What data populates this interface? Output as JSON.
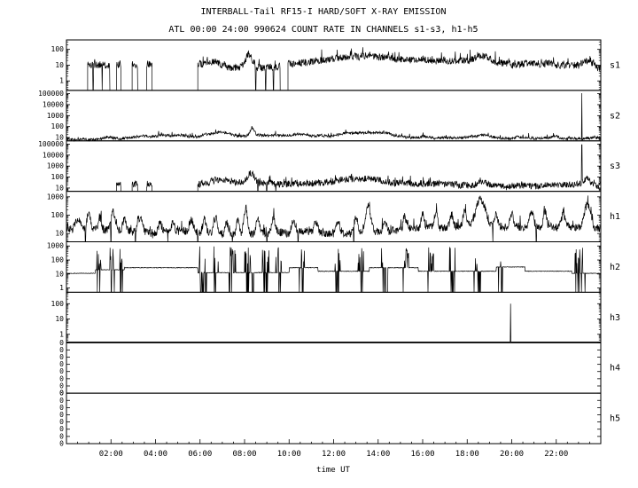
{
  "page": {
    "background": "#ffffff",
    "line_color": "#000000"
  },
  "chart_data": {
    "type": "line",
    "title": "INTERBALL-Tail RF15-I HARD/SOFT X-RAY EMISSION",
    "subtitle": "ATL 00:00 24:00 990624  COUNT RATE IN CHANNELS s1-s3, h1-h5",
    "xlabel": "time UT",
    "y_scale": "log",
    "grid": false,
    "x_range_hours": [
      0,
      24
    ],
    "x_minor_step_hours": 0.5,
    "x_ticks": [
      {
        "hour": 2,
        "label": "02:00"
      },
      {
        "hour": 4,
        "label": "04:00"
      },
      {
        "hour": 6,
        "label": "06:00"
      },
      {
        "hour": 8,
        "label": "08:00"
      },
      {
        "hour": 10,
        "label": "10:00"
      },
      {
        "hour": 12,
        "label": "12:00"
      },
      {
        "hour": 14,
        "label": "14:00"
      },
      {
        "hour": 16,
        "label": "16:00"
      },
      {
        "hour": 18,
        "label": "18:00"
      },
      {
        "hour": 20,
        "label": "20:00"
      },
      {
        "hour": 22,
        "label": "22:00"
      }
    ],
    "panels": [
      {
        "label": "s1",
        "kind": "noisy",
        "seed": 11,
        "log_range": [
          -0.6,
          2.6
        ],
        "minor": true,
        "yticks": [
          {
            "pos": 2,
            "text": "100"
          },
          {
            "pos": 1,
            "text": "10"
          },
          {
            "pos": 0,
            "text": "1"
          }
        ],
        "base": 1.05,
        "noise": 0.22,
        "ex": [
          0.05,
          0.55
        ],
        "segments": [
          [
            0.95,
            1.95
          ],
          [
            2.25,
            2.45
          ],
          [
            2.95,
            3.2
          ],
          [
            3.6,
            3.85
          ],
          [
            5.9,
            9.6
          ],
          [
            9.95,
            24
          ]
        ],
        "humps": [
          [
            6.6,
            0.5,
            0.3
          ],
          [
            8.2,
            0.22,
            0.85
          ],
          [
            13.5,
            1.8,
            0.45
          ],
          [
            16.2,
            0.5,
            0.15
          ],
          [
            18.7,
            0.4,
            0.35
          ],
          [
            21.2,
            0.8,
            0.15
          ],
          [
            23.4,
            0.3,
            0.45
          ]
        ],
        "downspikes": [
          1.2,
          1.6,
          8.5,
          8.95,
          9.3
        ],
        "upspikes": []
      },
      {
        "label": "s2",
        "kind": "noisy",
        "seed": 22,
        "log_range": [
          0.7,
          5.3
        ],
        "minor": true,
        "yticks": [
          {
            "pos": 5,
            "text": "100000"
          },
          {
            "pos": 4,
            "text": "10000"
          },
          {
            "pos": 3,
            "text": "1000"
          },
          {
            "pos": 2,
            "text": "100"
          },
          {
            "pos": 1,
            "text": "10"
          }
        ],
        "base": 0.98,
        "noise": 0.12,
        "ex": [
          0.04,
          0.35
        ],
        "segments": [
          [
            0,
            24
          ]
        ],
        "humps": [
          [
            2.0,
            0.4,
            0.12
          ],
          [
            6.9,
            0.6,
            0.4
          ],
          [
            8.35,
            0.15,
            0.65
          ],
          [
            10.5,
            0.4,
            0.18
          ],
          [
            13.5,
            1.5,
            0.35
          ],
          [
            16.1,
            0.3,
            0.18
          ],
          [
            18.7,
            0.4,
            0.3
          ],
          [
            20.3,
            0.3,
            0.15
          ],
          [
            21.9,
            0.3,
            0.18
          ]
        ],
        "downspikes": [],
        "upspikes": [
          [
            23.15,
            5.05
          ]
        ]
      },
      {
        "label": "s3",
        "kind": "noisy",
        "seed": 33,
        "log_range": [
          0.7,
          5.3
        ],
        "minor": true,
        "yticks": [
          {
            "pos": 5,
            "text": "100000"
          },
          {
            "pos": 4,
            "text": "10000"
          },
          {
            "pos": 3,
            "text": "1000"
          },
          {
            "pos": 2,
            "text": "100"
          },
          {
            "pos": 1,
            "text": "10"
          }
        ],
        "base": 1.35,
        "noise": 0.3,
        "ex": [
          0.05,
          0.5
        ],
        "segments": [
          [
            2.25,
            2.45
          ],
          [
            2.95,
            3.2
          ],
          [
            3.6,
            3.85
          ],
          [
            5.9,
            24
          ]
        ],
        "humps": [
          [
            6.9,
            0.6,
            0.4
          ],
          [
            8.3,
            0.22,
            0.95
          ],
          [
            13.5,
            1.6,
            0.4
          ],
          [
            18.7,
            0.4,
            0.4
          ],
          [
            23.35,
            0.25,
            0.5
          ]
        ],
        "downspikes": [
          8.6,
          9.0,
          9.4
        ],
        "upspikes": [
          [
            23.15,
            4.95
          ]
        ]
      },
      {
        "label": "h1",
        "kind": "noisy",
        "seed": 44,
        "log_range": [
          0.55,
          3.3
        ],
        "minor": true,
        "yticks": [
          {
            "pos": 3,
            "text": "1000"
          },
          {
            "pos": 2,
            "text": "100"
          },
          {
            "pos": 1,
            "text": "10"
          }
        ],
        "base": 1.15,
        "noise": 0.22,
        "ex": [
          0.06,
          0.5
        ],
        "segments": [
          [
            0,
            24
          ]
        ],
        "humps": [
          [
            0.5,
            0.15,
            0.6
          ],
          [
            1.0,
            0.12,
            0.9
          ],
          [
            1.5,
            0.1,
            0.7
          ],
          [
            2.1,
            0.12,
            1.0
          ],
          [
            2.6,
            0.1,
            0.6
          ],
          [
            3.3,
            0.15,
            0.8
          ],
          [
            4.2,
            0.12,
            0.5
          ],
          [
            4.8,
            0.1,
            0.6
          ],
          [
            5.6,
            0.12,
            0.7
          ],
          [
            6.2,
            0.1,
            0.8
          ],
          [
            6.7,
            0.12,
            0.9
          ],
          [
            7.2,
            0.1,
            0.7
          ],
          [
            7.7,
            0.1,
            0.8
          ],
          [
            8.05,
            0.12,
            1.5
          ],
          [
            8.6,
            0.1,
            0.9
          ],
          [
            9.3,
            0.12,
            0.8
          ],
          [
            10.2,
            0.12,
            0.7
          ],
          [
            11.2,
            0.1,
            0.6
          ],
          [
            12.2,
            0.12,
            0.7
          ],
          [
            13.0,
            0.1,
            0.8
          ],
          [
            13.55,
            0.15,
            1.4
          ],
          [
            14.3,
            0.1,
            0.7
          ],
          [
            15.2,
            0.12,
            0.6
          ],
          [
            16.0,
            0.1,
            0.7
          ],
          [
            16.6,
            0.1,
            0.8
          ],
          [
            17.3,
            0.1,
            0.7
          ],
          [
            17.9,
            0.12,
            0.8
          ],
          [
            18.6,
            0.3,
            1.5
          ],
          [
            19.3,
            0.1,
            0.6
          ],
          [
            20.0,
            0.1,
            0.7
          ],
          [
            20.9,
            0.12,
            0.8
          ],
          [
            21.5,
            0.1,
            0.9
          ],
          [
            22.3,
            0.12,
            0.7
          ],
          [
            23.4,
            0.2,
            1.4
          ]
        ],
        "downspikes": [
          0.85,
          2.0,
          3.1,
          4.55,
          5.9,
          7.45,
          9.0,
          10.4,
          12.9,
          19.15,
          21.1
        ],
        "upspikes": []
      },
      {
        "label": "h2",
        "kind": "steps",
        "seed": 55,
        "log_range": [
          -0.3,
          3.3
        ],
        "minor": true,
        "yticks": [
          {
            "pos": 3,
            "text": "1000"
          },
          {
            "pos": 2,
            "text": "100"
          },
          {
            "pos": 1,
            "text": "10"
          },
          {
            "pos": 0,
            "text": "1"
          }
        ],
        "steps": [
          [
            0,
            1.3,
            1.05
          ],
          [
            1.3,
            2.6,
            1.3
          ],
          [
            2.6,
            5.9,
            1.45
          ],
          [
            5.9,
            10.0,
            1.1
          ],
          [
            10.0,
            11.3,
            1.45
          ],
          [
            11.3,
            13.6,
            1.2
          ],
          [
            13.6,
            15.8,
            1.45
          ],
          [
            15.8,
            19.3,
            1.2
          ],
          [
            19.3,
            20.6,
            1.5
          ],
          [
            20.6,
            22.7,
            1.2
          ],
          [
            22.7,
            24,
            1.05
          ]
        ],
        "clusters": [
          [
            1.35,
            1.55
          ],
          [
            1.95,
            2.15
          ],
          [
            2.4,
            2.55
          ],
          [
            5.95,
            6.3
          ],
          [
            6.6,
            6.9
          ],
          [
            7.3,
            7.6
          ],
          [
            8.0,
            8.45
          ],
          [
            8.8,
            9.1
          ],
          [
            9.4,
            9.65
          ],
          [
            10.45,
            10.7
          ],
          [
            12.05,
            12.3
          ],
          [
            13.1,
            13.35
          ],
          [
            14.15,
            14.45
          ],
          [
            15.1,
            15.4
          ],
          [
            16.2,
            16.5
          ],
          [
            17.2,
            17.5
          ],
          [
            18.3,
            18.6
          ],
          [
            19.4,
            19.6
          ],
          [
            22.8,
            23.3
          ]
        ]
      },
      {
        "label": "h3",
        "kind": "flat",
        "seed": 66,
        "log_range": [
          -0.55,
          2.75
        ],
        "minor": true,
        "yticks": [
          {
            "pos": 2,
            "text": "100"
          },
          {
            "pos": 1,
            "text": "10"
          },
          {
            "pos": 0,
            "text": "1"
          }
        ],
        "upspikes": [
          [
            19.95,
            2.0
          ]
        ]
      },
      {
        "label": "h4",
        "kind": "empty",
        "seed": 77,
        "log_range": [
          0,
          1
        ],
        "minor": false,
        "yticks": [
          {
            "pos": 1,
            "text": "0"
          },
          {
            "pos": 0.857,
            "text": "0"
          },
          {
            "pos": 0.714,
            "text": "0"
          },
          {
            "pos": 0.571,
            "text": "0"
          },
          {
            "pos": 0.429,
            "text": "0"
          },
          {
            "pos": 0.286,
            "text": "0"
          },
          {
            "pos": 0.143,
            "text": "0"
          },
          {
            "pos": 0,
            "text": "0"
          }
        ]
      },
      {
        "label": "h5",
        "kind": "empty",
        "seed": 88,
        "log_range": [
          0,
          1
        ],
        "minor": false,
        "yticks": [
          {
            "pos": 1,
            "text": "0"
          },
          {
            "pos": 0.857,
            "text": "0"
          },
          {
            "pos": 0.714,
            "text": "0"
          },
          {
            "pos": 0.571,
            "text": "0"
          },
          {
            "pos": 0.429,
            "text": "0"
          },
          {
            "pos": 0.286,
            "text": "0"
          },
          {
            "pos": 0.143,
            "text": "0"
          },
          {
            "pos": 0,
            "text": "0"
          }
        ]
      }
    ]
  }
}
